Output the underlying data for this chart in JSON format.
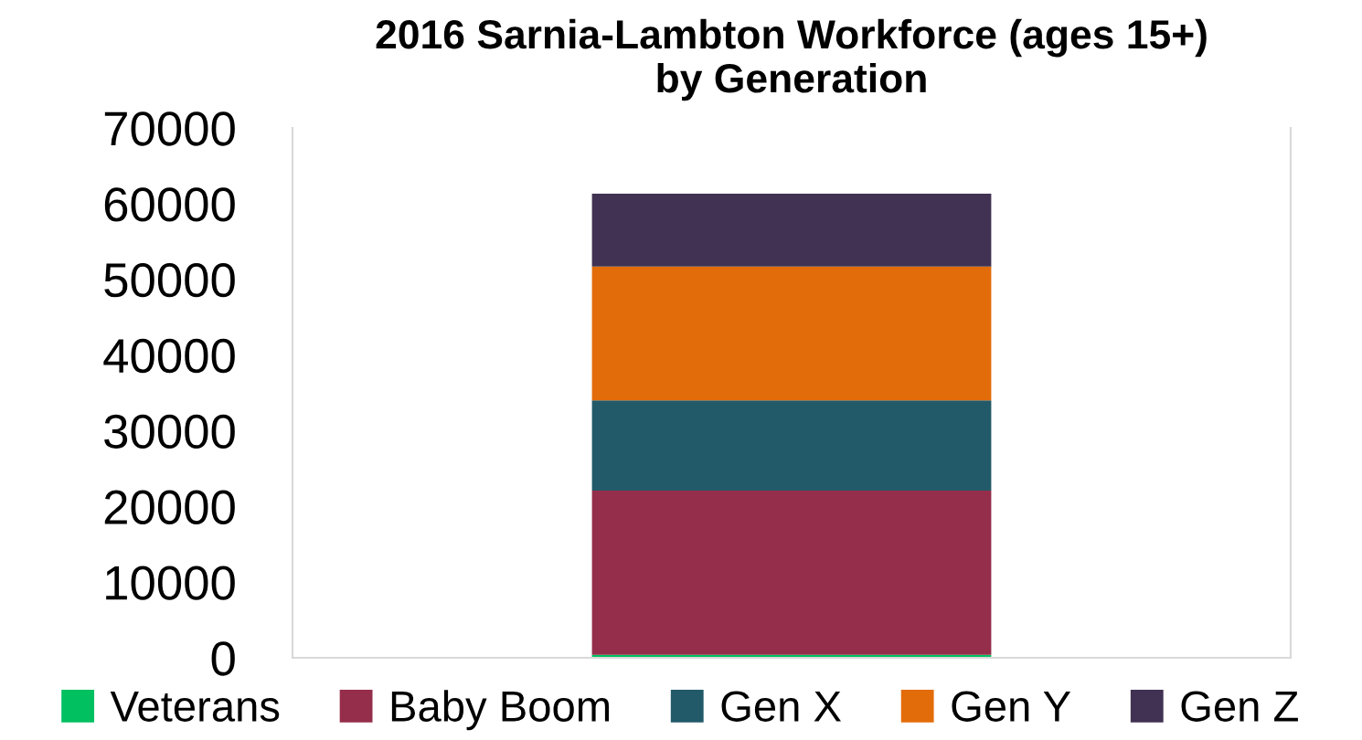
{
  "chart_data": {
    "type": "bar",
    "stacked": true,
    "title": "2016 Sarnia-Lambton Workforce (ages 15+)\nby Generation",
    "categories": [
      null
    ],
    "series": [
      {
        "name": "Veterans",
        "color": "#00c060",
        "values": [
          400
        ]
      },
      {
        "name": "Baby Boom",
        "color": "#952e4b",
        "values": [
          21700
        ]
      },
      {
        "name": "Gen X",
        "color": "#225a69",
        "values": [
          11900
        ]
      },
      {
        "name": "Gen Y",
        "color": "#e36c0a",
        "values": [
          17700
        ]
      },
      {
        "name": "Gen Z",
        "color": "#413253",
        "values": [
          9600
        ]
      }
    ],
    "ylim": [
      0,
      70000
    ],
    "yticks": [
      0,
      10000,
      20000,
      30000,
      40000,
      50000,
      60000,
      70000
    ],
    "grid": false,
    "legend": "bottom"
  }
}
